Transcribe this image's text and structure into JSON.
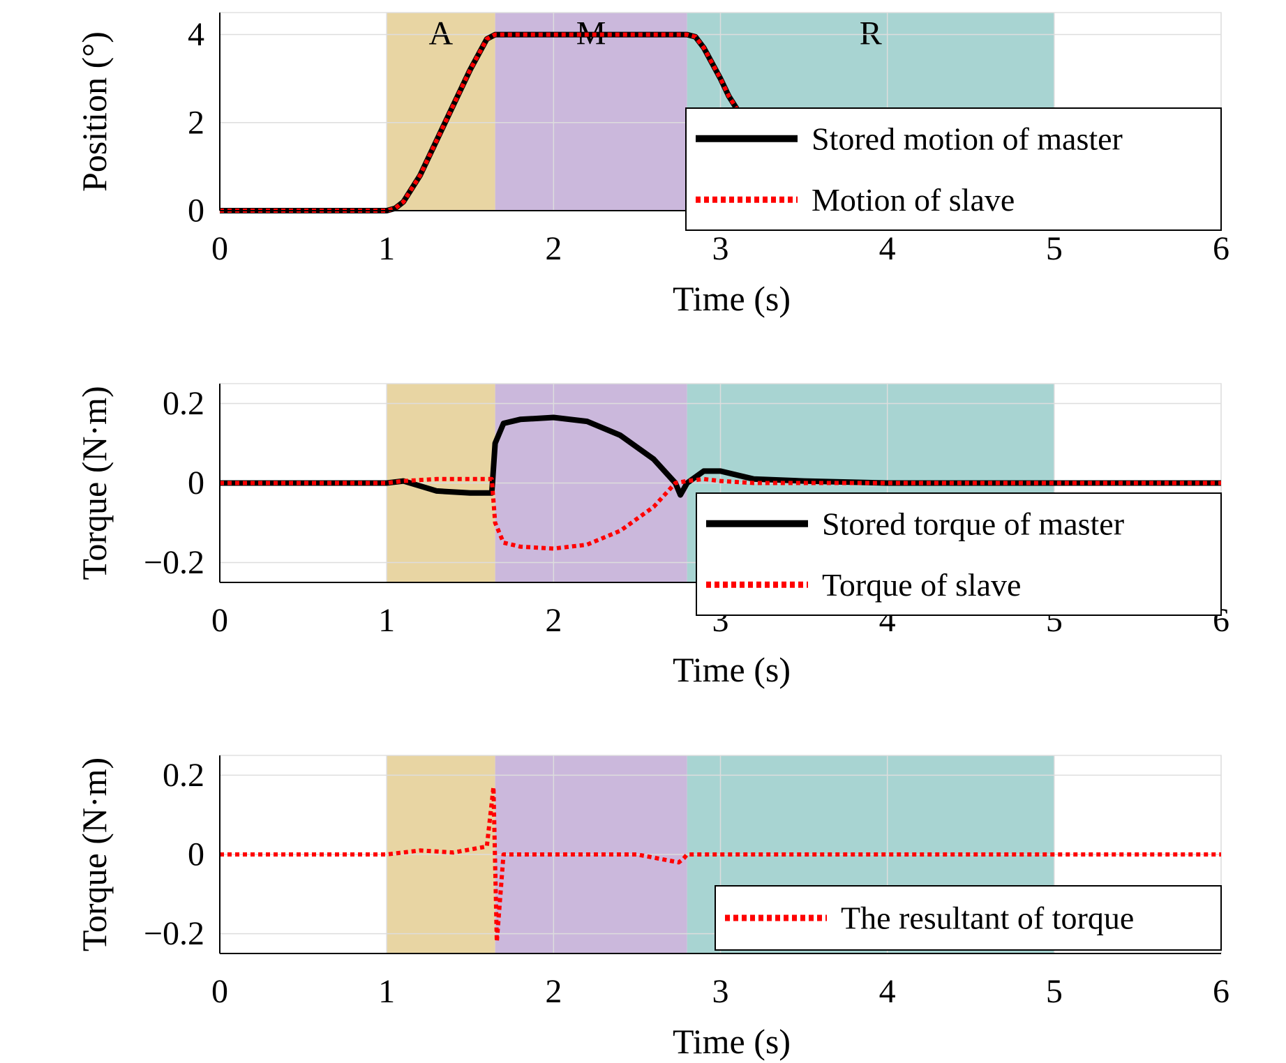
{
  "chart_data": [
    {
      "type": "line",
      "xlabel": "Time (s)",
      "ylabel": "Position (°)",
      "xlim": [
        0,
        6
      ],
      "ylim": [
        0,
        4.5
      ],
      "xticks": [
        0,
        1,
        2,
        3,
        4,
        5,
        6
      ],
      "xtick_labels": [
        "0",
        "1",
        "2",
        "3",
        "4",
        "5",
        "6"
      ],
      "yticks": [
        0,
        2,
        4
      ],
      "ytick_labels": [
        "0",
        "2",
        "4"
      ],
      "grid": true,
      "legend_position": "bottom-right",
      "bands": [
        {
          "label": "A",
          "x_start": 1.0,
          "x_end": 1.65,
          "color": "#e8d5a3"
        },
        {
          "label": "M",
          "x_start": 1.65,
          "x_end": 2.8,
          "color": "#cbb8dc"
        },
        {
          "label": "R",
          "x_start": 2.8,
          "x_end": 5.0,
          "color": "#a8d4d2"
        }
      ],
      "series": [
        {
          "name": "Stored motion of master",
          "color": "#000000",
          "style": "solid",
          "x": [
            0,
            1.0,
            1.05,
            1.1,
            1.2,
            1.3,
            1.4,
            1.5,
            1.6,
            1.65,
            2.0,
            2.5,
            2.8,
            2.85,
            2.9,
            3.0,
            3.05,
            3.1
          ],
          "y": [
            0,
            0,
            0.05,
            0.2,
            0.8,
            1.6,
            2.4,
            3.2,
            3.9,
            4.0,
            4.0,
            4.0,
            4.0,
            3.95,
            3.7,
            3.0,
            2.6,
            2.3
          ]
        },
        {
          "name": "Motion of slave",
          "color": "#ff0000",
          "style": "dotted",
          "x": [
            0,
            1.0,
            1.05,
            1.1,
            1.2,
            1.3,
            1.4,
            1.5,
            1.6,
            1.65,
            2.0,
            2.5,
            2.8,
            2.85,
            2.9,
            3.0,
            3.05,
            3.1
          ],
          "y": [
            0,
            0,
            0.05,
            0.2,
            0.8,
            1.6,
            2.4,
            3.2,
            3.9,
            4.0,
            4.0,
            4.0,
            4.0,
            3.95,
            3.7,
            3.0,
            2.6,
            2.3
          ]
        }
      ]
    },
    {
      "type": "line",
      "xlabel": "Time (s)",
      "ylabel": "Torque (N·m)",
      "xlim": [
        0,
        6
      ],
      "ylim": [
        -0.25,
        0.25
      ],
      "xticks": [
        0,
        1,
        2,
        3,
        4,
        5,
        6
      ],
      "xtick_labels": [
        "0",
        "1",
        "2",
        "3",
        "4",
        "5",
        "6"
      ],
      "yticks": [
        0.2,
        0,
        -0.2
      ],
      "ytick_labels": [
        "0.2",
        "0",
        "−0.2"
      ],
      "grid": true,
      "legend_position": "bottom-right",
      "bands": [
        {
          "x_start": 1.0,
          "x_end": 1.65,
          "color": "#e8d5a3"
        },
        {
          "x_start": 1.65,
          "x_end": 2.8,
          "color": "#cbb8dc"
        },
        {
          "x_start": 2.8,
          "x_end": 5.0,
          "color": "#a8d4d2"
        }
      ],
      "series": [
        {
          "name": "Stored  torque of master",
          "color": "#000000",
          "style": "solid",
          "x": [
            0,
            1.0,
            1.1,
            1.3,
            1.5,
            1.63,
            1.65,
            1.7,
            1.8,
            2.0,
            2.2,
            2.4,
            2.6,
            2.73,
            2.76,
            2.8,
            2.9,
            3.0,
            3.2,
            3.5,
            4.0,
            5.0,
            6.0
          ],
          "y": [
            0,
            0,
            0.005,
            -0.02,
            -0.025,
            -0.025,
            0.1,
            0.15,
            0.16,
            0.165,
            0.155,
            0.12,
            0.06,
            0.0,
            -0.03,
            0.0,
            0.03,
            0.03,
            0.01,
            0.005,
            0,
            0,
            0
          ]
        },
        {
          "name": "Torque of slave",
          "color": "#ff0000",
          "style": "dotted",
          "x": [
            0,
            1.0,
            1.1,
            1.3,
            1.5,
            1.63,
            1.65,
            1.7,
            1.8,
            2.0,
            2.2,
            2.4,
            2.6,
            2.73,
            2.8,
            2.9,
            3.0,
            3.2,
            3.5,
            4.0,
            5.0,
            6.0
          ],
          "y": [
            0,
            0,
            0.005,
            0.01,
            0.01,
            0.01,
            -0.1,
            -0.15,
            -0.16,
            -0.165,
            -0.155,
            -0.12,
            -0.06,
            0.0,
            0.005,
            0.01,
            0.005,
            0.0,
            0.0,
            0,
            0,
            0
          ]
        }
      ]
    },
    {
      "type": "line",
      "xlabel": "Time (s)",
      "ylabel": "Torque (N·m)",
      "xlim": [
        0,
        6
      ],
      "ylim": [
        -0.25,
        0.25
      ],
      "xticks": [
        0,
        1,
        2,
        3,
        4,
        5,
        6
      ],
      "xtick_labels": [
        "0",
        "1",
        "2",
        "3",
        "4",
        "5",
        "6"
      ],
      "yticks": [
        0.2,
        0,
        -0.2
      ],
      "ytick_labels": [
        "0.2",
        "0",
        "−0.2"
      ],
      "grid": true,
      "legend_position": "bottom-right",
      "bands": [
        {
          "x_start": 1.0,
          "x_end": 1.65,
          "color": "#e8d5a3"
        },
        {
          "x_start": 1.65,
          "x_end": 2.8,
          "color": "#cbb8dc"
        },
        {
          "x_start": 2.8,
          "x_end": 5.0,
          "color": "#a8d4d2"
        }
      ],
      "series": [
        {
          "name": "The resultant of torque",
          "color": "#ff0000",
          "style": "dotted",
          "x": [
            0,
            1.0,
            1.2,
            1.4,
            1.6,
            1.64,
            1.66,
            1.7,
            2.0,
            2.5,
            2.75,
            2.78,
            2.8,
            3.0,
            3.5,
            4.0,
            5.0,
            6.0
          ],
          "y": [
            0,
            0,
            0.01,
            0.005,
            0.02,
            0.17,
            -0.22,
            0.0,
            0.0,
            0.0,
            -0.02,
            -0.01,
            0.0,
            0.0,
            0.0,
            0,
            0,
            0
          ]
        }
      ]
    }
  ]
}
